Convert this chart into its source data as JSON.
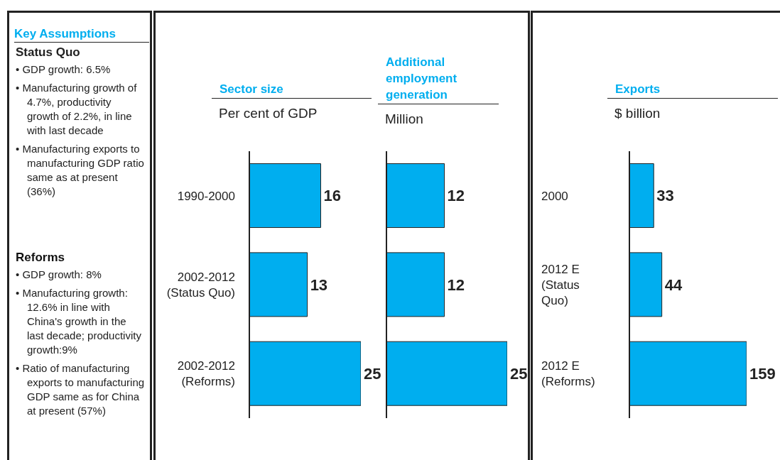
{
  "chart_data": [
    {
      "type": "other",
      "title": "Key Assumptions",
      "subtitle": "Status Quo",
      "annotations": [
        "• GDP growth: 6.5%",
        "• Manufacturing growth of 4.7%, productivity growth of 2.2%, in line with last decade",
        "• Manufacturing exports to manufacturing GDP ratio same as at present (36%)"
      ]
    },
    {
      "type": "other",
      "title": "Reforms",
      "annotations": [
        "• GDP growth: 8%",
        "• Manufacturing growth: 12.6% in line with China's growth in the last decade; productivity growth:9%",
        "• Ratio of manufacturing exports to manufacturing GDP same as for China at present (57%)"
      ]
    },
    {
      "type": "bar",
      "orientation": "horizontal",
      "title": "Sector size",
      "subtitle": "Per cent of GDP",
      "categories": [
        "1990-2000",
        "2002-2012 (Status Quo)",
        "2002-2012 (Reforms)"
      ],
      "values": [
        16,
        13,
        25
      ],
      "color": "#00aeef",
      "data_labels": true
    },
    {
      "type": "bar",
      "orientation": "horizontal",
      "title": "Additional employment generation",
      "subtitle": "Million",
      "categories": [
        null,
        null,
        null
      ],
      "values": [
        12,
        12,
        25
      ],
      "color": "#00aeef",
      "data_labels": true,
      "tick_labels": false
    },
    {
      "type": "bar",
      "orientation": "horizontal",
      "title": "Exports",
      "subtitle": "$ billion",
      "categories": [
        "2000",
        "2012 E (Status Quo)",
        "2012 E (Reforms)"
      ],
      "values": [
        33,
        44,
        159
      ],
      "color": "#00aeef",
      "data_labels": true
    }
  ]
}
